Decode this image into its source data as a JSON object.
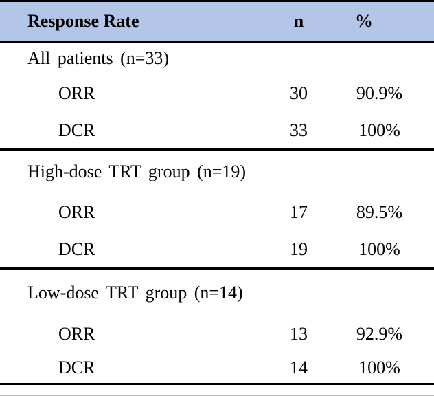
{
  "table": {
    "header": {
      "label": "Response Rate",
      "n": "n",
      "pct": "%"
    },
    "sections": [
      {
        "title": "All patients (n=33)",
        "rows": [
          {
            "label": "ORR",
            "n": "30",
            "pct": "90.9%"
          },
          {
            "label": "DCR",
            "n": "33",
            "pct": "100%"
          }
        ]
      },
      {
        "title": "High-dose TRT group (n=19)",
        "rows": [
          {
            "label": "ORR",
            "n": "17",
            "pct": "89.5%"
          },
          {
            "label": "DCR",
            "n": "19",
            "pct": "100%"
          }
        ]
      },
      {
        "title": "Low-dose TRT group (n=14)",
        "rows": [
          {
            "label": "ORR",
            "n": "13",
            "pct": "92.9%"
          },
          {
            "label": "DCR",
            "n": "14",
            "pct": "100%"
          }
        ]
      }
    ],
    "colors": {
      "header_bg": "#b4c6e7",
      "rule": "#000000",
      "text": "#000000"
    }
  },
  "chart_data": {
    "type": "table",
    "title": "Response Rate",
    "columns": [
      "Response Rate",
      "n",
      "%"
    ],
    "groups": [
      {
        "group": "All patients (n=33)",
        "rows": [
          [
            "ORR",
            30,
            "90.9%"
          ],
          [
            "DCR",
            33,
            "100%"
          ]
        ]
      },
      {
        "group": "High-dose TRT group (n=19)",
        "rows": [
          [
            "ORR",
            17,
            "89.5%"
          ],
          [
            "DCR",
            19,
            "100%"
          ]
        ]
      },
      {
        "group": "Low-dose TRT group (n=14)",
        "rows": [
          [
            "ORR",
            13,
            "92.9%"
          ],
          [
            "DCR",
            14,
            "100%"
          ]
        ]
      }
    ]
  }
}
